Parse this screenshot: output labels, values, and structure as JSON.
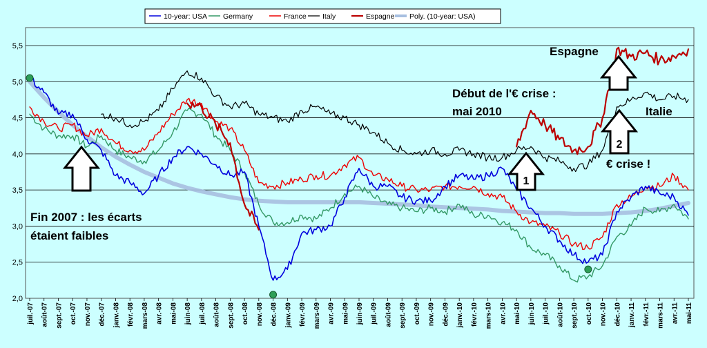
{
  "chart_data": {
    "type": "line",
    "title": "",
    "xlabel": "",
    "ylabel": "",
    "ylim": [
      2.0,
      5.5
    ],
    "yticks": [
      "2,0",
      "2,5",
      "3,0",
      "3,5",
      "4,0",
      "4,5",
      "5,0",
      "5,5"
    ],
    "grid": "horizontal",
    "legend_position": "top",
    "x": [
      "juil.-07",
      "août-07",
      "sept.-07",
      "oct.-07",
      "nov.-07",
      "déc.-07",
      "janv.-08",
      "févr.-08",
      "mars-08",
      "avr.-08",
      "mai-08",
      "juin-08",
      "juil.-08",
      "août-08",
      "sept.-08",
      "oct.-08",
      "nov.-08",
      "déc.-08",
      "janv.-09",
      "févr.-09",
      "mars-09",
      "avr.-09",
      "mai-09",
      "juin-09",
      "juil.-09",
      "août-09",
      "sept.-09",
      "oct.-09",
      "nov.-09",
      "déc.-09",
      "janv.-10",
      "févr.-10",
      "mars-10",
      "avr.-10",
      "mai-10",
      "juin-10",
      "juil.-10",
      "août-10",
      "sept.-10",
      "oct.-10",
      "nov.-10",
      "déc.-10",
      "janv.-11",
      "févr.-11",
      "mars-11",
      "avr.-11",
      "mai-11"
    ],
    "series": [
      {
        "name": "10-year: USA",
        "color": "#0000dd",
        "width": 1.6,
        "values": [
          5.05,
          4.85,
          4.55,
          4.55,
          4.2,
          4.05,
          3.7,
          3.6,
          3.45,
          3.7,
          3.95,
          4.1,
          4.0,
          3.85,
          3.7,
          3.75,
          3.0,
          2.25,
          2.4,
          2.9,
          2.95,
          3.0,
          3.4,
          3.8,
          3.55,
          3.55,
          3.4,
          3.35,
          3.35,
          3.55,
          3.7,
          3.65,
          3.7,
          3.8,
          3.5,
          3.25,
          3.0,
          2.8,
          2.6,
          2.5,
          2.6,
          3.2,
          3.4,
          3.55,
          3.45,
          3.4,
          3.15
        ]
      },
      {
        "name": "Germany",
        "color": "#339966",
        "width": 1.4,
        "values": [
          4.55,
          4.35,
          4.25,
          4.25,
          4.1,
          4.25,
          4.05,
          3.95,
          3.9,
          4.05,
          4.3,
          4.6,
          4.55,
          4.25,
          4.05,
          3.75,
          3.3,
          3.05,
          3.05,
          3.15,
          3.1,
          3.25,
          3.45,
          3.55,
          3.4,
          3.3,
          3.25,
          3.2,
          3.25,
          3.2,
          3.3,
          3.15,
          3.15,
          3.05,
          2.95,
          2.7,
          2.6,
          2.45,
          2.25,
          2.3,
          2.45,
          2.85,
          3.0,
          3.25,
          3.2,
          3.3,
          3.1
        ]
      },
      {
        "name": "France",
        "color": "#ee0000",
        "width": 1.4,
        "values": [
          4.65,
          4.45,
          4.35,
          4.4,
          4.25,
          4.35,
          4.15,
          4.05,
          4.05,
          4.3,
          4.55,
          4.75,
          4.7,
          4.45,
          4.35,
          4.05,
          3.6,
          3.55,
          3.6,
          3.65,
          3.7,
          3.7,
          3.85,
          3.95,
          3.7,
          3.65,
          3.55,
          3.5,
          3.5,
          3.55,
          3.55,
          3.55,
          3.45,
          3.4,
          3.2,
          3.05,
          3.0,
          2.9,
          2.75,
          2.7,
          2.85,
          3.3,
          3.4,
          3.55,
          3.55,
          3.7,
          3.5
        ]
      },
      {
        "name": "Italy",
        "color": "#000000",
        "width": 1.2,
        "values": [
          null,
          null,
          null,
          null,
          null,
          4.55,
          4.5,
          4.4,
          4.45,
          4.6,
          4.9,
          5.15,
          5.05,
          4.8,
          4.65,
          4.7,
          4.55,
          4.5,
          4.45,
          4.6,
          4.65,
          4.55,
          4.5,
          4.4,
          4.3,
          4.15,
          4.05,
          4.0,
          4.05,
          4.0,
          4.05,
          4.0,
          3.95,
          3.95,
          4.05,
          4.1,
          3.95,
          3.9,
          3.8,
          3.85,
          4.05,
          4.65,
          4.75,
          4.85,
          4.75,
          4.8,
          4.75
        ]
      },
      {
        "name": "Espagne",
        "color": "#bb0000",
        "width": 2.2,
        "values": [
          null,
          null,
          null,
          null,
          null,
          null,
          null,
          null,
          null,
          null,
          null,
          4.7,
          4.65,
          4.4,
          4.15,
          3.3,
          2.95,
          null,
          null,
          null,
          null,
          null,
          null,
          null,
          null,
          null,
          null,
          null,
          null,
          null,
          null,
          null,
          null,
          null,
          4.1,
          4.6,
          4.4,
          4.2,
          4.05,
          4.1,
          4.5,
          5.45,
          5.35,
          5.4,
          5.3,
          5.35,
          5.45
        ]
      },
      {
        "name": "Poly. (10-year: USA)",
        "color": "#a7bfe0",
        "width": 6,
        "values": [
          5.0,
          4.78,
          4.58,
          4.4,
          4.24,
          4.09,
          3.96,
          3.85,
          3.75,
          3.67,
          3.59,
          3.53,
          3.48,
          3.44,
          3.4,
          3.37,
          3.35,
          3.34,
          3.33,
          3.33,
          3.33,
          3.33,
          3.33,
          3.33,
          3.32,
          3.31,
          3.3,
          3.29,
          3.27,
          3.26,
          3.25,
          3.24,
          3.23,
          3.21,
          3.2,
          3.19,
          3.18,
          3.18,
          3.17,
          3.17,
          3.17,
          3.18,
          3.19,
          3.21,
          3.24,
          3.28,
          3.32
        ]
      }
    ],
    "annotations": [
      {
        "text": "Espagne"
      },
      {
        "text": "Début de l'€ crise :"
      },
      {
        "text": "mai 2010"
      },
      {
        "text": "Italie"
      },
      {
        "text": "€ crise !"
      },
      {
        "text": "Fin 2007 : les écarts"
      },
      {
        "text": "étaient faibles"
      }
    ],
    "arrow_labels": [
      "1",
      "2"
    ]
  }
}
